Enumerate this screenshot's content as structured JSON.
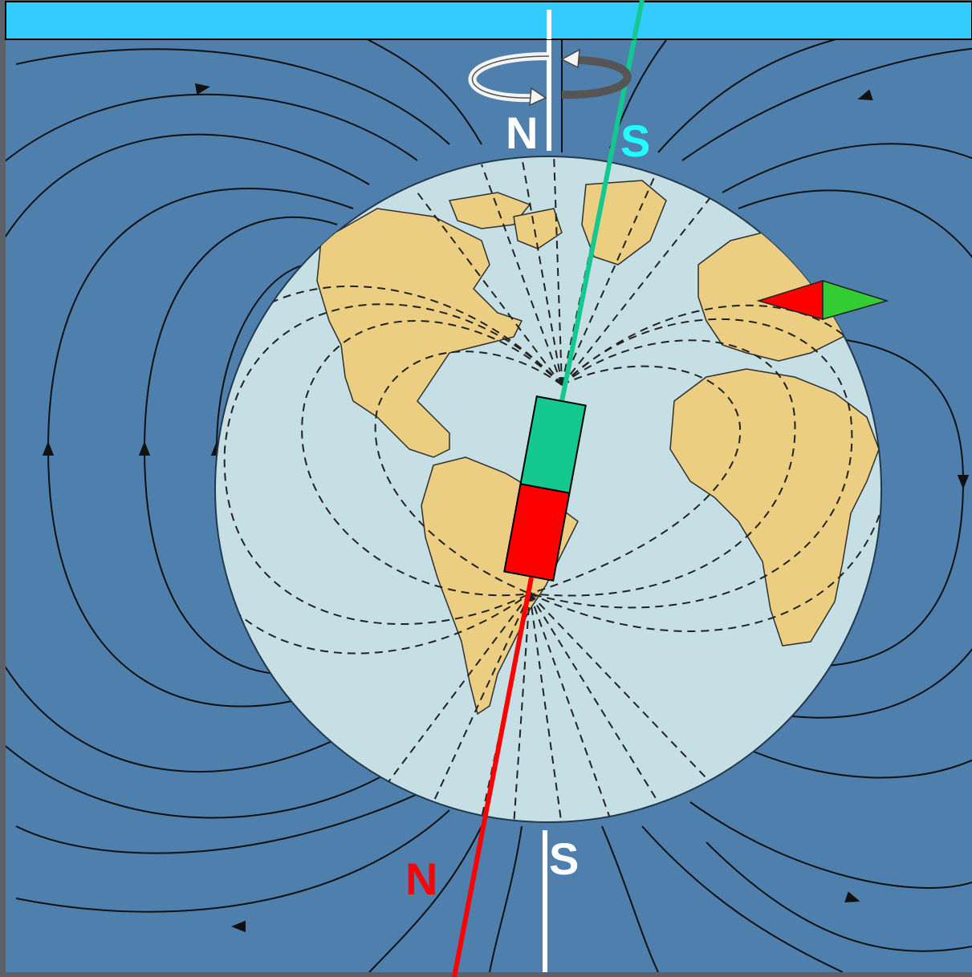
{
  "labels": {
    "geo_north": "N",
    "magnetic_south": "S",
    "geo_south": "S",
    "magnetic_north": "N"
  },
  "colors": {
    "header_bar": "#33ccff",
    "ocean": "#4f7fad",
    "globe": "#c6dfe4",
    "land": "#ecce82",
    "magnet_s": "#13c98f",
    "magnet_n": "#ff0000",
    "axis_white": "#ffffff",
    "s_label": "#22ffff",
    "compass_red": "#ff0000",
    "compass_green": "#33cc33"
  },
  "icons": [
    "rotation-arrow-icon",
    "compass-needle-icon",
    "bar-magnet-icon"
  ]
}
